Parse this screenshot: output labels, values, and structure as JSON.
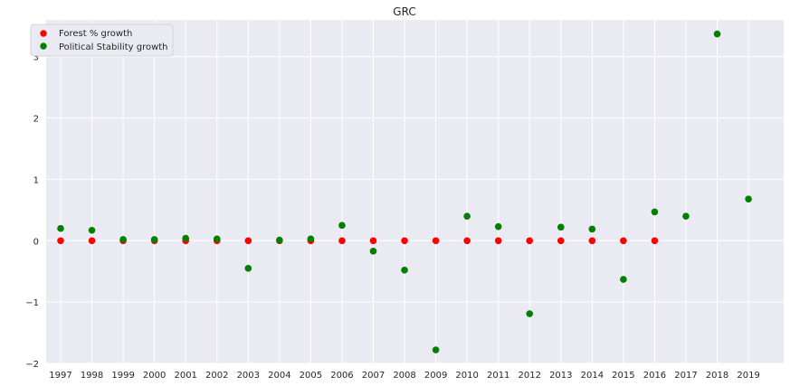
{
  "chart_data": {
    "type": "scatter",
    "title": "GRC",
    "xlabel": "",
    "ylabel": "",
    "x_categories": [
      "1997",
      "1998",
      "1999",
      "2000",
      "2001",
      "2002",
      "2003",
      "2004",
      "2005",
      "2006",
      "2007",
      "2008",
      "2009",
      "2010",
      "2011",
      "2012",
      "2013",
      "2014",
      "2015",
      "2016",
      "2017",
      "2018",
      "2019"
    ],
    "ylim": [
      -2.0,
      3.6
    ],
    "yticks": [
      -2,
      -1,
      0,
      1,
      2,
      3
    ],
    "grid": true,
    "legend_position": "top-left",
    "series": [
      {
        "name": "Forest % growth",
        "color": "#ff0000",
        "points": [
          {
            "x": "1997",
            "y": 0.0
          },
          {
            "x": "1998",
            "y": 0.0
          },
          {
            "x": "1999",
            "y": 0.0
          },
          {
            "x": "2000",
            "y": 0.0
          },
          {
            "x": "2001",
            "y": 0.0
          },
          {
            "x": "2002",
            "y": 0.0
          },
          {
            "x": "2003",
            "y": 0.0
          },
          {
            "x": "2004",
            "y": 0.0
          },
          {
            "x": "2005",
            "y": 0.0
          },
          {
            "x": "2006",
            "y": 0.0
          },
          {
            "x": "2007",
            "y": 0.0
          },
          {
            "x": "2008",
            "y": 0.0
          },
          {
            "x": "2009",
            "y": 0.0
          },
          {
            "x": "2010",
            "y": 0.0
          },
          {
            "x": "2011",
            "y": 0.0
          },
          {
            "x": "2012",
            "y": 0.0
          },
          {
            "x": "2013",
            "y": 0.0
          },
          {
            "x": "2014",
            "y": 0.0
          },
          {
            "x": "2015",
            "y": 0.0
          },
          {
            "x": "2016",
            "y": 0.0
          }
        ]
      },
      {
        "name": "Political Stability growth",
        "color": "#008000",
        "points": [
          {
            "x": "1997",
            "y": 0.2
          },
          {
            "x": "1998",
            "y": 0.17
          },
          {
            "x": "1999",
            "y": 0.02
          },
          {
            "x": "2000",
            "y": 0.02
          },
          {
            "x": "2001",
            "y": 0.04
          },
          {
            "x": "2002",
            "y": 0.03
          },
          {
            "x": "2003",
            "y": -0.45
          },
          {
            "x": "2004",
            "y": 0.01
          },
          {
            "x": "2005",
            "y": 0.03
          },
          {
            "x": "2006",
            "y": 0.25
          },
          {
            "x": "2007",
            "y": -0.17
          },
          {
            "x": "2008",
            "y": -0.48
          },
          {
            "x": "2009",
            "y": -1.78
          },
          {
            "x": "2010",
            "y": 0.4
          },
          {
            "x": "2011",
            "y": 0.23
          },
          {
            "x": "2012",
            "y": -1.19
          },
          {
            "x": "2013",
            "y": 0.22
          },
          {
            "x": "2014",
            "y": 0.19
          },
          {
            "x": "2015",
            "y": -0.63
          },
          {
            "x": "2016",
            "y": 0.47
          },
          {
            "x": "2017",
            "y": 0.4
          },
          {
            "x": "2018",
            "y": 3.37
          },
          {
            "x": "2019",
            "y": 0.68
          }
        ]
      }
    ]
  }
}
